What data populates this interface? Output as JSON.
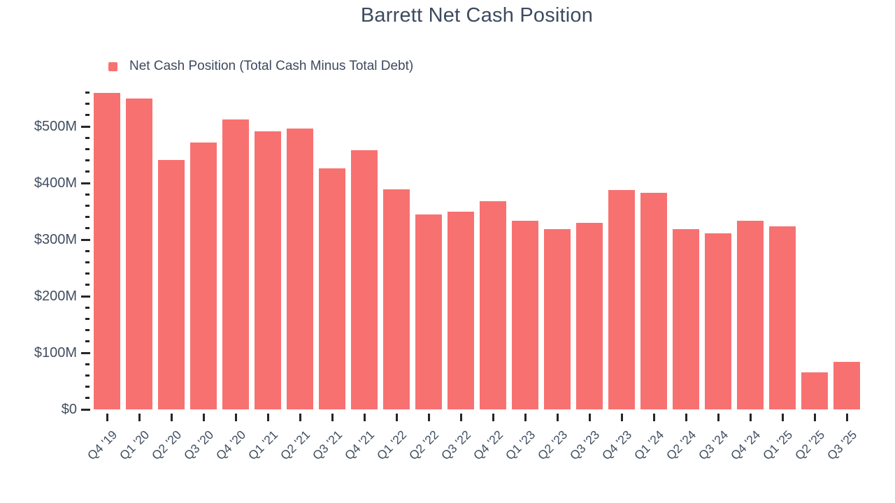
{
  "chart": {
    "title": "Barrett Net Cash Position",
    "legend_label": "Net Cash Position (Total Cash Minus Total Debt)"
  },
  "chart_data": {
    "type": "bar",
    "title": "Barrett Net Cash Position",
    "legend": [
      "Net Cash Position (Total Cash Minus Total Debt)"
    ],
    "legend_position": "top-left",
    "grid": false,
    "unit": "USD millions",
    "categories": [
      "Q4 '19",
      "Q1 '20",
      "Q2 '20",
      "Q3 '20",
      "Q4 '20",
      "Q1 '21",
      "Q2 '21",
      "Q3 '21",
      "Q4 '21",
      "Q1 '22",
      "Q2 '22",
      "Q3 '22",
      "Q4 '22",
      "Q1 '23",
      "Q2 '23",
      "Q3 '23",
      "Q4 '23",
      "Q1 '24",
      "Q2 '24",
      "Q3 '24",
      "Q4 '24",
      "Q1 '25",
      "Q2 '25",
      "Q3 '25"
    ],
    "values": [
      560,
      549,
      441,
      472,
      513,
      491,
      497,
      426,
      458,
      389,
      345,
      349,
      368,
      333,
      318,
      330,
      388,
      383,
      318,
      311,
      333,
      323,
      65,
      84
    ],
    "xlabel": "",
    "ylabel": "",
    "ylim": [
      0,
      560
    ],
    "ytick_interval": 100,
    "y_minor_tick_interval": 20,
    "ytick_values": [
      0,
      100,
      200,
      300,
      400,
      500
    ],
    "ytick_labels": [
      "$0",
      "$100M",
      "$200M",
      "$300M",
      "$400M",
      "$500M"
    ],
    "colors": {
      "bar": "#f87171",
      "title_text": "#3d4a5e",
      "axis_text": "#414e61",
      "tick": "#262626",
      "background": "#ffffff"
    }
  }
}
